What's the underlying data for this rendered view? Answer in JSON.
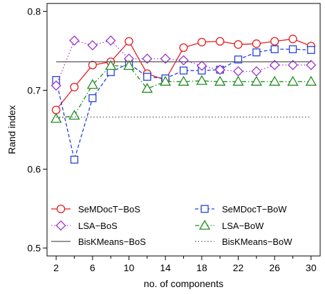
{
  "chart_data": {
    "type": "line",
    "xlabel": "no. of components",
    "ylabel": "Rand index",
    "xlim": [
      1,
      31
    ],
    "ylim": [
      0.49,
      0.81
    ],
    "x_ticks": [
      2,
      6,
      10,
      14,
      18,
      22,
      26,
      30
    ],
    "x_minor_ticks": [
      4,
      8,
      12,
      16,
      20,
      24,
      28
    ],
    "y_ticks": [
      0.5,
      0.6,
      0.7,
      0.8
    ],
    "y_tick_labels": [
      "0.5",
      "0.6",
      "0.7",
      "0.8"
    ],
    "grid": false,
    "legend_position": "bottom",
    "x": [
      2,
      4,
      6,
      8,
      10,
      12,
      14,
      16,
      18,
      20,
      22,
      24,
      26,
      28,
      30
    ],
    "series": [
      {
        "name": "SeMDocT−BoS",
        "color": "#e41a1c",
        "line": "solid",
        "marker": "circle",
        "values": [
          0.675,
          0.704,
          0.732,
          0.736,
          0.762,
          0.721,
          0.713,
          0.754,
          0.761,
          0.762,
          0.758,
          0.759,
          0.762,
          0.765,
          0.756
        ]
      },
      {
        "name": "SeMDocT−BoW",
        "color": "#1f3fd8",
        "line": "dashed",
        "marker": "square",
        "values": [
          0.713,
          0.612,
          0.69,
          0.723,
          0.734,
          0.717,
          0.715,
          0.725,
          0.725,
          0.726,
          0.739,
          0.748,
          0.752,
          0.752,
          0.751
        ]
      },
      {
        "name": "LSA−BoS",
        "color": "#9a32cd",
        "line": "dotted",
        "marker": "diamond",
        "values": [
          0.706,
          0.763,
          0.757,
          0.763,
          0.74,
          0.74,
          0.74,
          0.738,
          0.731,
          0.726,
          0.724,
          0.724,
          0.732,
          0.732,
          0.732
        ]
      },
      {
        "name": "LSA−BoW",
        "color": "#1e8c1e",
        "line": "dashdot",
        "marker": "triangle",
        "values": [
          0.664,
          0.668,
          0.707,
          0.731,
          0.731,
          0.702,
          0.711,
          0.711,
          0.712,
          0.711,
          0.711,
          0.711,
          0.711,
          0.711,
          0.711
        ]
      },
      {
        "name": "BisKMeans−BoS",
        "color": "#555555",
        "line": "solid",
        "marker": "none",
        "constant": 0.736
      },
      {
        "name": "BisKMeans−BoW",
        "color": "#555555",
        "line": "dotted",
        "marker": "none",
        "constant": 0.666
      }
    ]
  }
}
